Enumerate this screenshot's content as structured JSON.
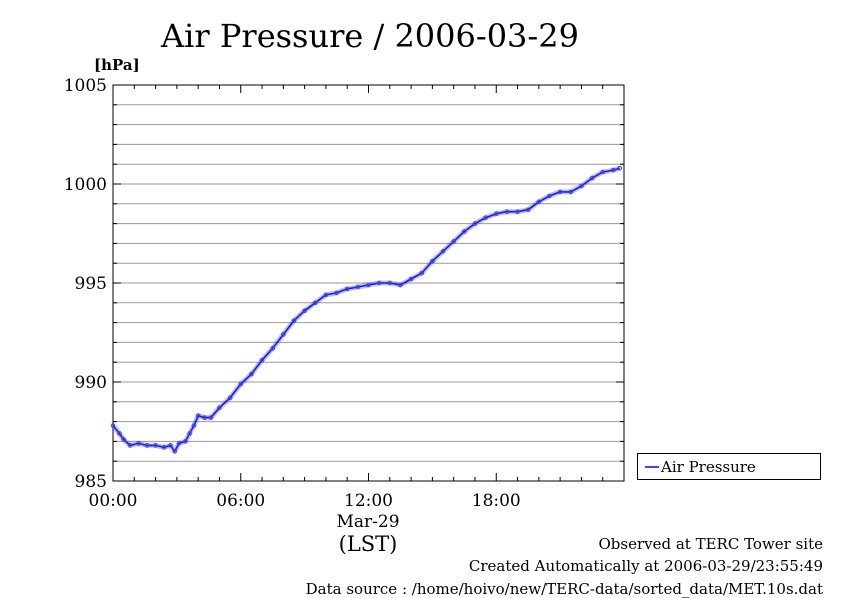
{
  "chart_data": {
    "type": "scatter",
    "title": "Air Pressure / 2006-03-29",
    "ylabel": "[hPa]",
    "xlabel": "(LST)",
    "date_label": "Mar-29",
    "ylim": [
      985,
      1005
    ],
    "xlim": [
      0,
      24
    ],
    "y_ticks": [
      "985",
      "990",
      "995",
      "1000",
      "1005"
    ],
    "y_tick_values": [
      985,
      990,
      995,
      1000,
      1005
    ],
    "x_ticks": [
      "00:00",
      "06:00",
      "12:00",
      "18:00"
    ],
    "x_tick_values": [
      0,
      6,
      12,
      18
    ],
    "grid": true,
    "legend_position": "right",
    "series": [
      {
        "name": "Air Pressure",
        "color": "#4040ff",
        "x": [
          0.0,
          0.3,
          0.5,
          0.8,
          1.2,
          1.6,
          2.0,
          2.4,
          2.7,
          2.9,
          3.1,
          3.4,
          3.6,
          3.8,
          4.0,
          4.3,
          4.6,
          5.0,
          5.5,
          6.0,
          6.5,
          7.0,
          7.5,
          8.0,
          8.5,
          9.0,
          9.5,
          10.0,
          10.5,
          11.0,
          11.5,
          12.0,
          12.5,
          13.0,
          13.5,
          14.0,
          14.5,
          15.0,
          15.5,
          16.0,
          16.5,
          17.0,
          17.5,
          18.0,
          18.5,
          19.0,
          19.5,
          20.0,
          20.5,
          21.0,
          21.5,
          22.0,
          22.5,
          23.0,
          23.5,
          23.8
        ],
        "values": [
          987.8,
          987.4,
          987.1,
          986.8,
          986.9,
          986.8,
          986.8,
          986.7,
          986.8,
          986.5,
          986.9,
          987.0,
          987.4,
          987.8,
          988.3,
          988.2,
          988.2,
          988.7,
          989.2,
          989.9,
          990.4,
          991.1,
          991.7,
          992.4,
          993.1,
          993.6,
          994.0,
          994.4,
          994.5,
          994.7,
          994.8,
          994.9,
          995.0,
          995.0,
          994.9,
          995.2,
          995.5,
          996.1,
          996.6,
          997.1,
          997.6,
          998.0,
          998.3,
          998.5,
          998.6,
          998.6,
          998.7,
          999.1,
          999.4,
          999.6,
          999.6,
          999.9,
          1000.3,
          1000.6,
          1000.7,
          1000.8
        ]
      }
    ]
  },
  "footer": {
    "line1": "Observed at TERC Tower site",
    "line2": "Created Automatically at 2006-03-29/23:55:49",
    "line3": "Data source : /home/hoivo/new/TERC-data/sorted_data/MET.10s.dat"
  }
}
